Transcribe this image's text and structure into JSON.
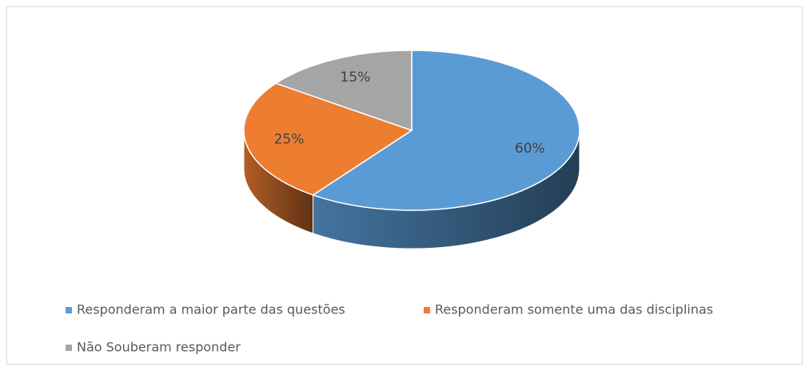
{
  "chart_data": {
    "type": "pie",
    "categories": [
      "Responderam a maior parte das questões",
      "Responderam somente uma das disciplinas",
      "Não Souberam responder"
    ],
    "values": [
      60,
      25,
      15
    ],
    "value_labels": [
      "60%",
      "25%",
      "15%"
    ],
    "colors": [
      "#5b9bd5",
      "#ed7d31",
      "#a5a5a5"
    ],
    "legend": "bottom"
  }
}
